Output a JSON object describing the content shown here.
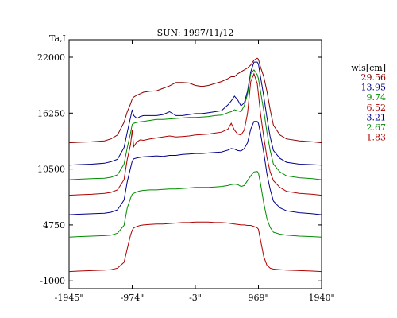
{
  "chart_data": {
    "type": "line",
    "title": "SUN: 1997/11/12",
    "ylabel": "Ta,I",
    "xlabel": "",
    "x_tick_labels": [
      "-1945\"",
      "-974\"",
      "-3\"",
      "969\"",
      "1940\""
    ],
    "x_ticks": [
      -1945,
      -974,
      -3,
      969,
      1940
    ],
    "y_ticks": [
      -1000,
      4750,
      10500,
      16250,
      22000
    ],
    "y_tick_labels": [
      "-1000",
      "4750",
      "10500",
      "16250",
      "22000"
    ],
    "xlim": [
      -1945,
      1940
    ],
    "ylim": [
      -1800,
      23800
    ],
    "grid": false,
    "legend_title": "wls[cm]",
    "legend_position": "right",
    "x": [
      -1945,
      -1800,
      -1600,
      -1400,
      -1300,
      -1200,
      -1100,
      -1050,
      -1000,
      -974,
      -950,
      -900,
      -850,
      -800,
      -700,
      -600,
      -500,
      -400,
      -300,
      -200,
      -100,
      0,
      100,
      200,
      300,
      400,
      500,
      550,
      600,
      650,
      700,
      750,
      800,
      850,
      900,
      950,
      969,
      1000,
      1050,
      1100,
      1150,
      1200,
      1300,
      1400,
      1600,
      1800,
      1940
    ],
    "series": [
      {
        "name": "29.56",
        "color": "#8b0000",
        "values": [
          13200,
          13250,
          13300,
          13400,
          13600,
          14000,
          15300,
          16400,
          17200,
          17700,
          17900,
          18100,
          18250,
          18400,
          18500,
          18550,
          18800,
          19050,
          19400,
          19400,
          19350,
          19100,
          19000,
          19100,
          19300,
          19500,
          19800,
          20000,
          20000,
          20300,
          20500,
          20700,
          20900,
          21200,
          21700,
          21900,
          21800,
          21000,
          20000,
          18500,
          16600,
          15000,
          14000,
          13600,
          13400,
          13300,
          13200
        ]
      },
      {
        "name": "13.95",
        "color": "#00008b",
        "values": [
          10900,
          10950,
          11000,
          11100,
          11250,
          11500,
          12700,
          14300,
          15800,
          16600,
          16000,
          15700,
          15900,
          16000,
          16000,
          16000,
          16100,
          16400,
          16000,
          16000,
          16100,
          16200,
          16200,
          16300,
          16400,
          16500,
          17100,
          17500,
          18000,
          17600,
          17000,
          17300,
          18500,
          20500,
          21500,
          21500,
          21300,
          20000,
          18000,
          15800,
          13800,
          12400,
          11600,
          11200,
          11000,
          10950,
          10900
        ]
      },
      {
        "name": "9.74",
        "color": "#008b00",
        "values": [
          9400,
          9450,
          9500,
          9550,
          9650,
          9900,
          11000,
          12700,
          14200,
          15100,
          15200,
          15300,
          15350,
          15400,
          15500,
          15600,
          15600,
          15650,
          15700,
          15750,
          15800,
          15800,
          15850,
          15900,
          16000,
          16050,
          16300,
          16400,
          16600,
          16500,
          16400,
          17000,
          18200,
          20300,
          20700,
          20200,
          19800,
          18500,
          16500,
          14300,
          12400,
          11000,
          10200,
          9800,
          9600,
          9500,
          9400
        ]
      },
      {
        "name": "6.52",
        "color": "#b00000",
        "values": [
          7800,
          7850,
          7900,
          8000,
          8100,
          8350,
          9400,
          11500,
          13000,
          14500,
          12800,
          13300,
          13500,
          13450,
          13600,
          13700,
          13800,
          13900,
          13800,
          13850,
          13900,
          14000,
          14050,
          14100,
          14200,
          14300,
          14600,
          15200,
          14500,
          14100,
          14000,
          14500,
          16200,
          19500,
          20300,
          19300,
          18200,
          16200,
          13800,
          11700,
          10200,
          9300,
          8600,
          8200,
          8000,
          7900,
          7800
        ]
      },
      {
        "name": "3.21",
        "color": "#00008b",
        "values": [
          5800,
          5850,
          5900,
          5950,
          6050,
          6300,
          7300,
          9200,
          10600,
          11300,
          11550,
          11650,
          11700,
          11750,
          11800,
          11850,
          11800,
          11900,
          11900,
          12000,
          12050,
          12100,
          12100,
          12150,
          12200,
          12250,
          12450,
          12600,
          12550,
          12400,
          12350,
          12600,
          13200,
          14600,
          15400,
          15400,
          15200,
          14200,
          12200,
          10000,
          8400,
          7200,
          6500,
          6200,
          6000,
          5900,
          5800
        ]
      },
      {
        "name": "2.67",
        "color": "#008b00",
        "values": [
          3500,
          3550,
          3600,
          3650,
          3700,
          3900,
          4700,
          6500,
          7500,
          7900,
          8000,
          8150,
          8250,
          8300,
          8350,
          8350,
          8400,
          8450,
          8450,
          8500,
          8550,
          8600,
          8600,
          8600,
          8650,
          8700,
          8800,
          8900,
          8950,
          8900,
          8700,
          8800,
          9300,
          9800,
          10200,
          10250,
          10100,
          9000,
          7000,
          5400,
          4500,
          4000,
          3800,
          3700,
          3600,
          3550,
          3500
        ]
      },
      {
        "name": "1.83",
        "color": "#b00000",
        "values": [
          -50,
          0,
          50,
          100,
          150,
          300,
          900,
          2300,
          3700,
          4200,
          4450,
          4600,
          4700,
          4750,
          4800,
          4850,
          4850,
          4900,
          4950,
          5000,
          5000,
          5050,
          5050,
          5050,
          5000,
          5000,
          4950,
          4900,
          4850,
          4800,
          4750,
          4750,
          4700,
          4700,
          4600,
          4450,
          4300,
          3200,
          1500,
          600,
          300,
          200,
          150,
          100,
          50,
          0,
          -50
        ]
      }
    ]
  }
}
